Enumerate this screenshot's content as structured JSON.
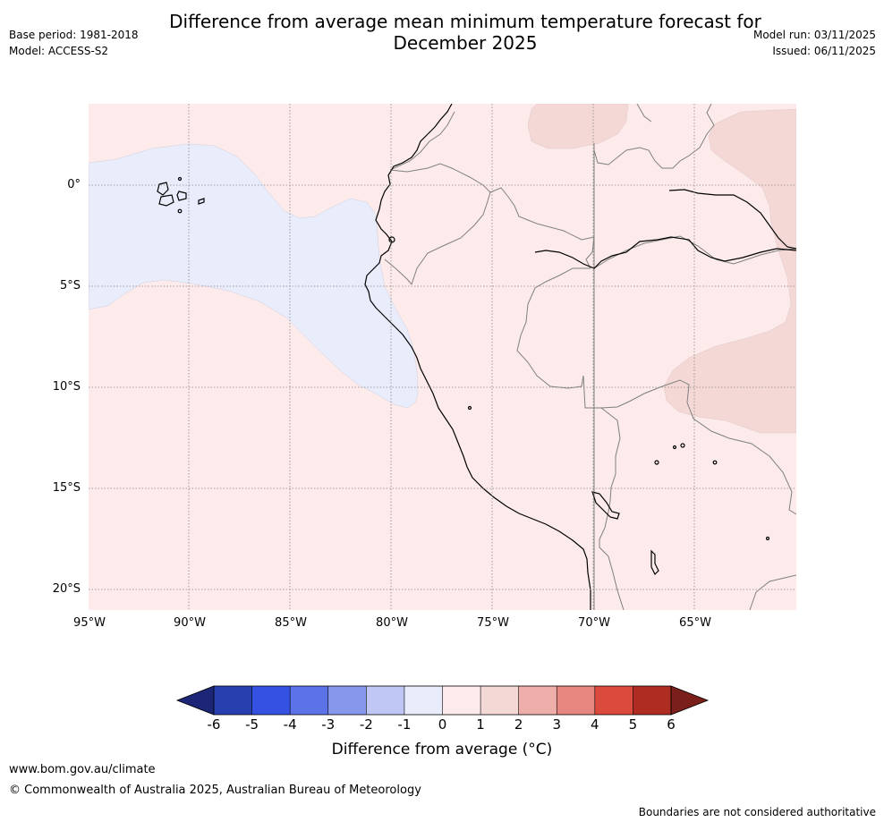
{
  "header": {
    "title_line1": "Difference from average mean minimum temperature forecast for",
    "title_line2": "December 2025",
    "base_period": "Base period: 1981-2018",
    "model": "Model: ACCESS-S2",
    "model_run": "Model run: 03/11/2025",
    "issued": "Issued: 06/11/2025"
  },
  "map": {
    "y_ticks": [
      "0°",
      "5°S",
      "10°S",
      "15°S",
      "20°S"
    ],
    "x_ticks": [
      "95°W",
      "90°W",
      "85°W",
      "80°W",
      "75°W",
      "70°W",
      "65°W"
    ],
    "colors": {
      "ocean_background": "#fcebea",
      "cool_anomaly": "#e8ecfb",
      "warm_anomaly": "#f4d8d6",
      "coastline": "#000000",
      "borders": "#808080",
      "gridlines": "#888888"
    }
  },
  "colorbar": {
    "ticks": [
      "-6",
      "-5",
      "-4",
      "-3",
      "-2",
      "-1",
      "0",
      "1",
      "2",
      "3",
      "4",
      "5",
      "6"
    ],
    "colors": [
      "#1d2676",
      "#283fb0",
      "#3451e1",
      "#5c73e8",
      "#8797ec",
      "#c0c7f4",
      "#e8ecfb",
      "#fcebea",
      "#f4d8d6",
      "#eeaeaa",
      "#e7877f",
      "#dc4a3d",
      "#ae2c22",
      "#7a1f19"
    ],
    "label": "Difference from average (°C)"
  },
  "footer": {
    "url": "www.bom.gov.au/climate",
    "copyright": "© Commonwealth of Australia 2025, Australian Bureau of Meteorology",
    "note": "Boundaries are not considered authoritative"
  }
}
